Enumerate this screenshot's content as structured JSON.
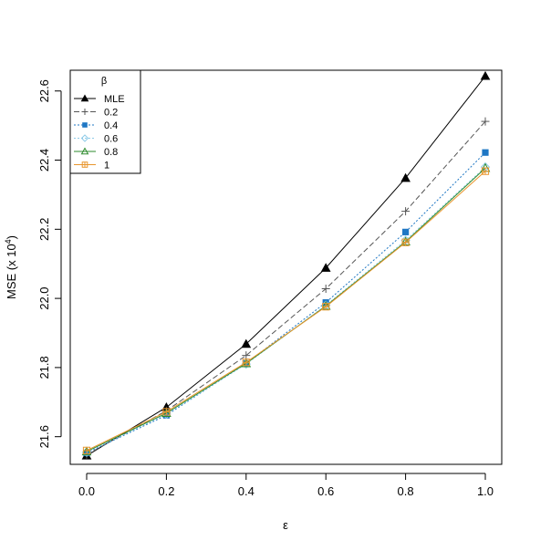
{
  "chart_data": {
    "type": "line",
    "xlabel": "ε",
    "ylabel": "MSE (x 10",
    "ylabel_exponent": "4",
    "ylabel_close": ")",
    "xlim": [
      0,
      1
    ],
    "ylim": [
      21.52,
      22.66
    ],
    "grid": false,
    "legend": {
      "title": "β",
      "position": "top-left"
    },
    "x_ticks": [
      "0.0",
      "0.2",
      "0.4",
      "0.6",
      "0.8",
      "1.0"
    ],
    "y_ticks": [
      "21.6",
      "21.8",
      "22.0",
      "22.2",
      "22.4",
      "22.6"
    ],
    "x": [
      0,
      0.2,
      0.4,
      0.6,
      0.8,
      1.0
    ],
    "series": [
      {
        "name": "MLE",
        "color": "#000000",
        "marker": "filled-triangle",
        "dash": "solid",
        "values": [
          21.545,
          21.685,
          21.868,
          22.088,
          22.348,
          22.643
        ]
      },
      {
        "name": "0.2",
        "color": "#555555",
        "marker": "plus",
        "dash": "dashed",
        "values": [
          21.548,
          21.675,
          21.835,
          22.028,
          22.252,
          22.512
        ]
      },
      {
        "name": "0.4",
        "color": "#1f77c4",
        "marker": "filled-square",
        "dash": "dotted",
        "values": [
          21.553,
          21.662,
          21.812,
          21.988,
          22.192,
          22.422
        ]
      },
      {
        "name": "0.6",
        "color": "#8fcbe8",
        "marker": "open-diamond",
        "dash": "dotted",
        "values": [
          21.555,
          21.665,
          21.81,
          21.98,
          22.168,
          22.38
        ]
      },
      {
        "name": "0.8",
        "color": "#2e8b2e",
        "marker": "open-triangle",
        "dash": "solid",
        "values": [
          21.557,
          21.668,
          21.812,
          21.978,
          22.164,
          22.377
        ]
      },
      {
        "name": "1",
        "color": "#e8962e",
        "marker": "square-cross",
        "dash": "solid",
        "values": [
          21.56,
          21.672,
          21.815,
          21.976,
          22.162,
          22.368
        ]
      }
    ]
  }
}
